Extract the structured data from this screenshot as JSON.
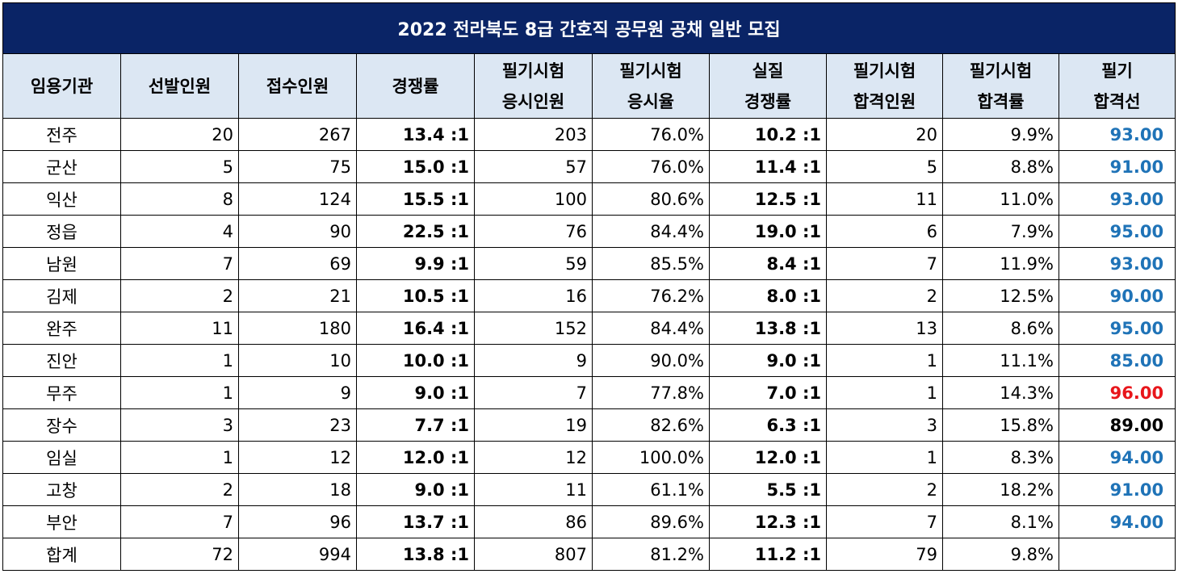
{
  "title": "2022 전라북도 8급 간호직 공무원 공채 일반 모집",
  "headers": [
    {
      "l1": "임용기관",
      "l2": ""
    },
    {
      "l1": "선발인원",
      "l2": ""
    },
    {
      "l1": "접수인원",
      "l2": ""
    },
    {
      "l1": "경쟁률",
      "l2": ""
    },
    {
      "l1": "필기시험",
      "l2": "응시인원"
    },
    {
      "l1": "필기시험",
      "l2": "응시율"
    },
    {
      "l1": "실질",
      "l2": "경쟁률"
    },
    {
      "l1": "필기시험",
      "l2": "합격인원"
    },
    {
      "l1": "필기시험",
      "l2": "합격률"
    },
    {
      "l1": "필기",
      "l2": "합격선"
    }
  ],
  "rows": [
    {
      "org": "전주",
      "sel": "20",
      "app": "267",
      "comp": "13.4 :1",
      "took": "203",
      "rate": "76.0%",
      "real": "10.2 :1",
      "pass": "20",
      "prate": "9.9%",
      "cut": "93.00",
      "cut_color": "#1f73b7"
    },
    {
      "org": "군산",
      "sel": "5",
      "app": "75",
      "comp": "15.0 :1",
      "took": "57",
      "rate": "76.0%",
      "real": "11.4 :1",
      "pass": "5",
      "prate": "8.8%",
      "cut": "91.00",
      "cut_color": "#1f73b7"
    },
    {
      "org": "익산",
      "sel": "8",
      "app": "124",
      "comp": "15.5 :1",
      "took": "100",
      "rate": "80.6%",
      "real": "12.5 :1",
      "pass": "11",
      "prate": "11.0%",
      "cut": "93.00",
      "cut_color": "#1f73b7"
    },
    {
      "org": "정읍",
      "sel": "4",
      "app": "90",
      "comp": "22.5 :1",
      "took": "76",
      "rate": "84.4%",
      "real": "19.0 :1",
      "pass": "6",
      "prate": "7.9%",
      "cut": "95.00",
      "cut_color": "#1f73b7"
    },
    {
      "org": "남원",
      "sel": "7",
      "app": "69",
      "comp": "9.9 :1",
      "took": "59",
      "rate": "85.5%",
      "real": "8.4 :1",
      "pass": "7",
      "prate": "11.9%",
      "cut": "93.00",
      "cut_color": "#1f73b7"
    },
    {
      "org": "김제",
      "sel": "2",
      "app": "21",
      "comp": "10.5 :1",
      "took": "16",
      "rate": "76.2%",
      "real": "8.0 :1",
      "pass": "2",
      "prate": "12.5%",
      "cut": "90.00",
      "cut_color": "#1f73b7"
    },
    {
      "org": "완주",
      "sel": "11",
      "app": "180",
      "comp": "16.4 :1",
      "took": "152",
      "rate": "84.4%",
      "real": "13.8 :1",
      "pass": "13",
      "prate": "8.6%",
      "cut": "95.00",
      "cut_color": "#1f73b7"
    },
    {
      "org": "진안",
      "sel": "1",
      "app": "10",
      "comp": "10.0 :1",
      "took": "9",
      "rate": "90.0%",
      "real": "9.0 :1",
      "pass": "1",
      "prate": "11.1%",
      "cut": "85.00",
      "cut_color": "#1f73b7"
    },
    {
      "org": "무주",
      "sel": "1",
      "app": "9",
      "comp": "9.0 :1",
      "took": "7",
      "rate": "77.8%",
      "real": "7.0 :1",
      "pass": "1",
      "prate": "14.3%",
      "cut": "96.00",
      "cut_color": "#e8161b"
    },
    {
      "org": "장수",
      "sel": "3",
      "app": "23",
      "comp": "7.7 :1",
      "took": "19",
      "rate": "82.6%",
      "real": "6.3 :1",
      "pass": "3",
      "prate": "15.8%",
      "cut": "89.00",
      "cut_color": "#000000"
    },
    {
      "org": "임실",
      "sel": "1",
      "app": "12",
      "comp": "12.0 :1",
      "took": "12",
      "rate": "100.0%",
      "real": "12.0 :1",
      "pass": "1",
      "prate": "8.3%",
      "cut": "94.00",
      "cut_color": "#1f73b7"
    },
    {
      "org": "고창",
      "sel": "2",
      "app": "18",
      "comp": "9.0 :1",
      "took": "11",
      "rate": "61.1%",
      "real": "5.5 :1",
      "pass": "2",
      "prate": "18.2%",
      "cut": "91.00",
      "cut_color": "#1f73b7"
    },
    {
      "org": "부안",
      "sel": "7",
      "app": "96",
      "comp": "13.7 :1",
      "took": "86",
      "rate": "89.6%",
      "real": "12.3 :1",
      "pass": "7",
      "prate": "8.1%",
      "cut": "94.00",
      "cut_color": "#1f73b7"
    },
    {
      "org": "합계",
      "sel": "72",
      "app": "994",
      "comp": "13.8 :1",
      "took": "807",
      "rate": "81.2%",
      "real": "11.2 :1",
      "pass": "79",
      "prate": "9.8%",
      "cut": "",
      "cut_color": "#000000"
    }
  ]
}
